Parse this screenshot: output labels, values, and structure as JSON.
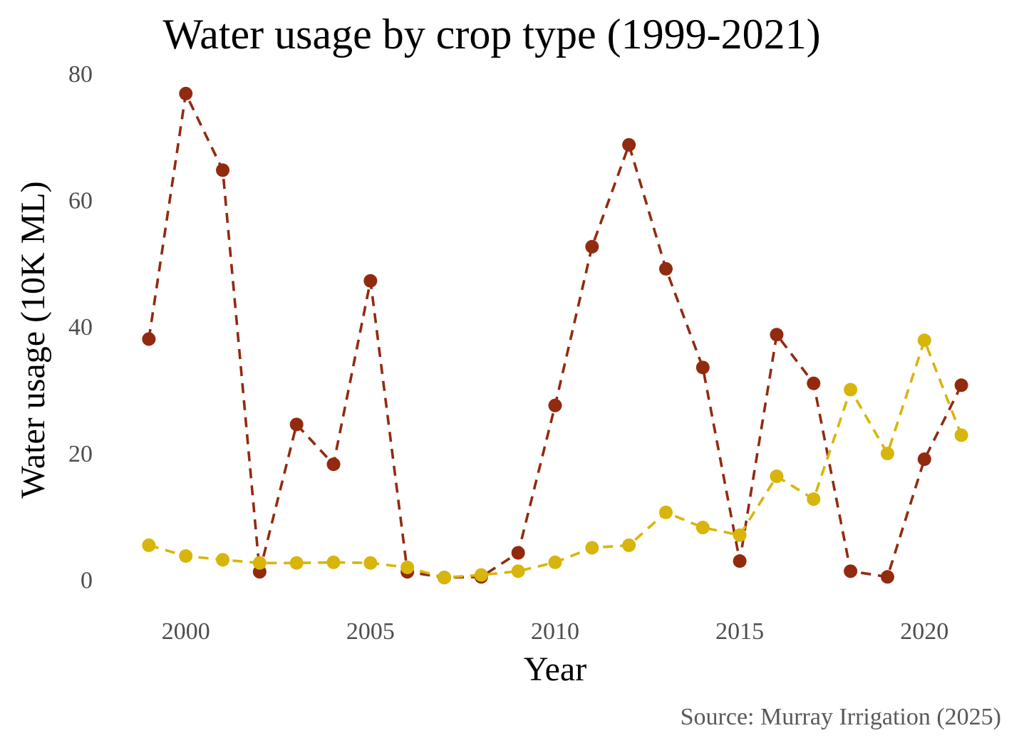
{
  "chart_data": {
    "type": "line",
    "title": "Water usage by crop type (1999-2021)",
    "xlabel": "Year",
    "ylabel": "Water usage (10K ML)",
    "caption": "Source: Murray Irrigation (2025)",
    "x": [
      1999,
      2000,
      2001,
      2002,
      2003,
      2004,
      2005,
      2006,
      2007,
      2008,
      2009,
      2010,
      2011,
      2012,
      2013,
      2014,
      2015,
      2016,
      2017,
      2018,
      2019,
      2020,
      2021
    ],
    "xlim": [
      1998.5,
      2021.5
    ],
    "ylim": [
      -3,
      80
    ],
    "x_ticks": [
      2000,
      2005,
      2010,
      2015,
      2020
    ],
    "x_tick_labels": [
      "2000",
      "2005",
      "2010",
      "2015",
      "2020"
    ],
    "y_ticks": [
      0,
      20,
      40,
      60,
      80
    ],
    "y_tick_labels": [
      "0",
      "20",
      "40",
      "60",
      "80"
    ],
    "grid": false,
    "legend": "none",
    "series": [
      {
        "color": "#922a10",
        "line_style": "dashed",
        "marker": "circle",
        "values": [
          38.0,
          76.8,
          64.7,
          1.2,
          24.5,
          18.2,
          47.2,
          1.2,
          0.3,
          0.4,
          4.2,
          27.5,
          52.6,
          68.7,
          49.1,
          33.5,
          2.9,
          38.7,
          31.0,
          1.3,
          0.4,
          19.0,
          30.7
        ]
      },
      {
        "color": "#d8b50a",
        "line_style": "dashed",
        "marker": "circle",
        "values": [
          5.4,
          3.7,
          3.1,
          2.6,
          2.6,
          2.7,
          2.6,
          1.9,
          0.3,
          0.7,
          1.3,
          2.7,
          5.0,
          5.4,
          10.6,
          8.2,
          7.0,
          16.3,
          12.7,
          30.0,
          19.9,
          37.8,
          22.8
        ]
      }
    ]
  }
}
